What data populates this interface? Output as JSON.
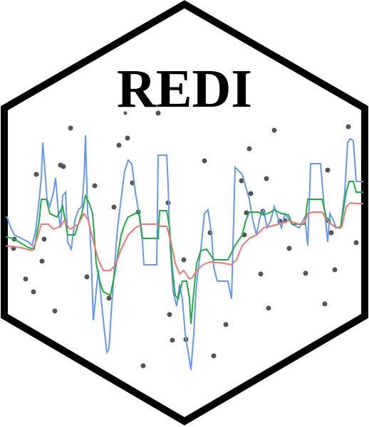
{
  "title": "REDI"
}
